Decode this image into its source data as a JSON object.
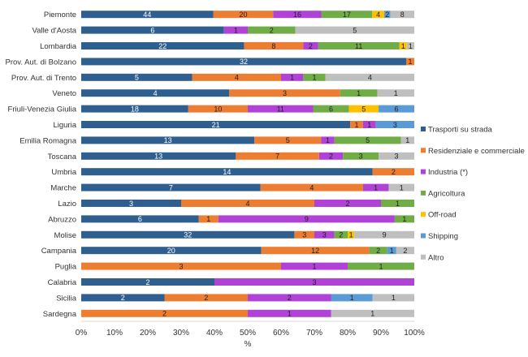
{
  "chart_data": {
    "type": "bar",
    "orientation": "horizontal",
    "stacked": "percent",
    "xlabel": "%",
    "ylabel": "",
    "xlim": [
      0,
      100
    ],
    "x_ticks": [
      "0%",
      "10%",
      "20%",
      "30%",
      "40%",
      "50%",
      "60%",
      "70%",
      "80%",
      "90%",
      "100%"
    ],
    "grid": false,
    "legend_position": "right",
    "categories": [
      "Piemonte",
      "Valle d'Aosta",
      "Lombardia",
      "Prov. Aut. di Bolzano",
      "Prov. Aut. di Trento",
      "Veneto",
      "Friuli-Venezia Giulia",
      "Liguria",
      "Emilia Romagna",
      "Toscana",
      "Umbria",
      "Marche",
      "Lazio",
      "Abruzzo",
      "Molise",
      "Campania",
      "Puglia",
      "Calabria",
      "Sicilia",
      "Sardegna"
    ],
    "series": [
      {
        "name": "Trasporti su strada",
        "color": "#2f5f8f",
        "values": [
          44,
          6,
          22,
          32,
          5,
          4,
          18,
          21,
          13,
          13,
          14,
          7,
          3,
          6,
          32,
          20,
          0,
          2,
          2,
          0
        ],
        "labels": [
          "44",
          "6",
          "22",
          "32",
          "5",
          "4",
          "18",
          "21",
          "13",
          "13",
          "14",
          "7",
          "3",
          "6",
          "32",
          "20",
          "",
          "2",
          "2",
          ""
        ]
      },
      {
        "name": "Residenziale e commerciale",
        "color": "#ed7d31",
        "values": [
          20,
          0,
          8,
          0.8,
          4,
          3,
          10,
          1,
          5,
          7,
          2,
          4,
          4,
          1,
          3,
          12,
          3,
          0,
          2,
          2
        ],
        "labels": [
          "20",
          "",
          "8",
          "1",
          "4",
          "3",
          "10",
          "1",
          "5",
          "7",
          "2",
          "4",
          "4",
          "1",
          "3",
          "12",
          "3",
          "",
          "2",
          "2"
        ]
      },
      {
        "name": "Industria (*)",
        "color": "#b042d8",
        "values": [
          16,
          1,
          2,
          0,
          1,
          0,
          11,
          1,
          1,
          2,
          0,
          1,
          2,
          9,
          3,
          0,
          1,
          3,
          2,
          1
        ],
        "labels": [
          "16",
          "1",
          "2",
          "",
          "1",
          "",
          "11",
          "1",
          "1",
          "2",
          "",
          "1",
          "2",
          "9",
          "3",
          "",
          "1",
          "3",
          "2",
          "1"
        ]
      },
      {
        "name": "Agricoltura",
        "color": "#70ad47",
        "values": [
          17,
          2,
          11,
          0,
          1,
          1,
          6,
          0,
          5,
          3,
          0,
          0,
          1,
          1,
          2,
          2,
          1,
          0,
          0,
          0
        ],
        "labels": [
          "17",
          "2",
          "11",
          "",
          "1",
          "1",
          "6",
          "",
          "5",
          "3",
          "",
          "",
          "1",
          "1",
          "2",
          "2",
          "1",
          "",
          "",
          ""
        ]
      },
      {
        "name": "Off-road",
        "color": "#ffc000",
        "values": [
          4,
          0,
          1,
          0,
          0,
          0,
          5,
          0,
          0,
          0,
          0,
          0,
          0,
          0,
          1,
          0,
          0,
          0,
          0,
          0
        ],
        "labels": [
          "4",
          "",
          "1",
          "",
          "",
          "",
          "5",
          "",
          "",
          "",
          "",
          "",
          "",
          "",
          "1",
          "",
          "",
          "",
          "",
          ""
        ]
      },
      {
        "name": "Shipping",
        "color": "#5b9bd5",
        "values": [
          2,
          0,
          0,
          0,
          0,
          0,
          6,
          3,
          0,
          0,
          0,
          0,
          0,
          0,
          0,
          1,
          0,
          0,
          1,
          0
        ],
        "labels": [
          "2",
          "",
          "",
          "",
          "",
          "",
          "6",
          "3",
          "",
          "",
          "",
          "",
          "",
          "",
          "",
          "1",
          "",
          "",
          "1",
          ""
        ]
      },
      {
        "name": "Altro",
        "color": "#bfbfbf",
        "values": [
          8,
          5,
          1,
          0,
          4,
          1,
          0,
          0,
          1,
          3,
          0,
          1,
          0,
          0,
          9,
          2,
          0,
          0,
          1,
          1
        ],
        "labels": [
          "8",
          "5",
          "1",
          "",
          "4",
          "1",
          "",
          "",
          "1",
          "3",
          "",
          "1",
          "",
          "",
          "9",
          "2",
          "",
          "",
          "1",
          "1"
        ]
      }
    ]
  }
}
